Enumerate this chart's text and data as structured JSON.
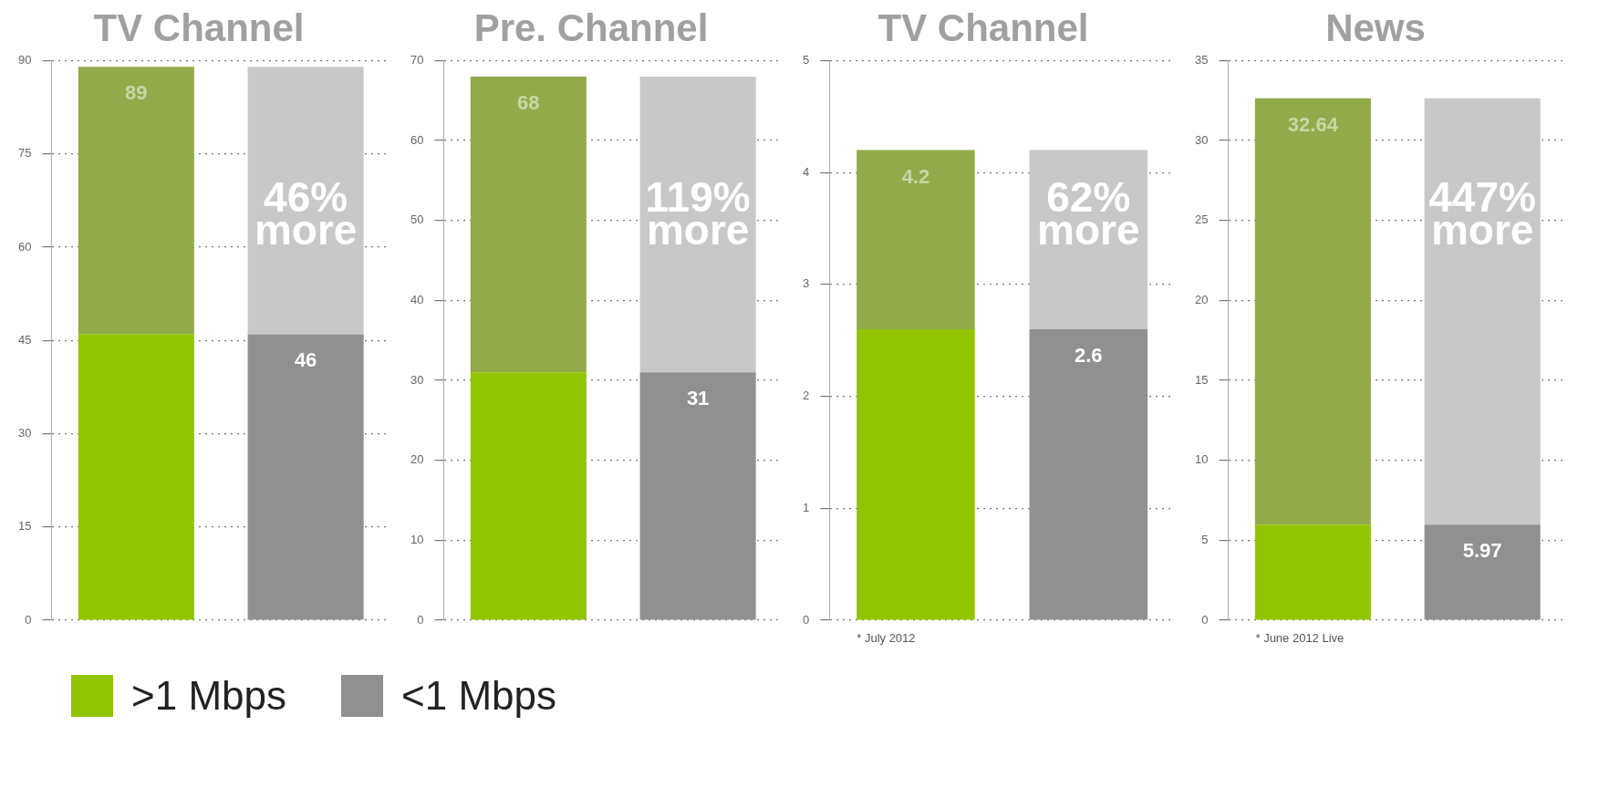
{
  "chart_data": [
    {
      "type": "bar",
      "title": "TV Channel",
      "categories": [
        null,
        null
      ],
      "stacked": true,
      "ylim": [
        0,
        90
      ],
      "yticks": [
        0,
        15,
        30,
        45,
        60,
        75,
        90
      ],
      "grid": "y",
      "legend": "bottom",
      "totals": [
        "89",
        null
      ],
      "annotations": [
        "46% more"
      ],
      "series": [
        {
          "name": ">1 Mbps",
          "color": "#92c400",
          "values": [
            46,
            null
          ]
        },
        {
          "color": "#92aa4a",
          "values": [
            43,
            null
          ]
        },
        {
          "name": "<1 Mbps",
          "color": "#909090",
          "values": [
            null,
            46
          ],
          "value_labels": [
            null,
            "46"
          ]
        },
        {
          "color": "#c8c8c8",
          "values": [
            null,
            43
          ]
        }
      ]
    },
    {
      "type": "bar",
      "title": "Pre. Channel",
      "categories": [
        null,
        null
      ],
      "stacked": true,
      "ylim": [
        0,
        70
      ],
      "yticks": [
        0,
        10,
        20,
        30,
        40,
        50,
        60,
        70
      ],
      "grid": "y",
      "totals": [
        "68",
        null
      ],
      "annotations": [
        "119% more"
      ],
      "series": [
        {
          "color": "#92c400",
          "values": [
            31,
            null
          ]
        },
        {
          "color": "#92aa4a",
          "values": [
            37,
            null
          ]
        },
        {
          "color": "#909090",
          "values": [
            null,
            31
          ],
          "value_labels": [
            null,
            "31"
          ]
        },
        {
          "color": "#c8c8c8",
          "values": [
            null,
            37
          ]
        }
      ]
    },
    {
      "type": "bar",
      "title": "TV Channel",
      "categories": [
        null,
        null
      ],
      "stacked": true,
      "ylim": [
        0,
        5
      ],
      "yticks": [
        0,
        1,
        2,
        3,
        4,
        5
      ],
      "grid": "y",
      "totals": [
        "4.2",
        null
      ],
      "annotations": [
        "62% more",
        "* July 2012"
      ],
      "series": [
        {
          "color": "#92c400",
          "values": [
            2.6,
            null
          ]
        },
        {
          "color": "#92aa4a",
          "values": [
            1.6,
            null
          ]
        },
        {
          "color": "#909090",
          "values": [
            null,
            2.6
          ],
          "value_labels": [
            null,
            "2.6"
          ]
        },
        {
          "color": "#c8c8c8",
          "values": [
            null,
            1.6
          ]
        }
      ]
    },
    {
      "type": "bar",
      "title": "News",
      "categories": [
        null,
        null
      ],
      "stacked": true,
      "ylim": [
        0,
        35
      ],
      "yticks": [
        0,
        5,
        10,
        15,
        20,
        25,
        30,
        35
      ],
      "grid": "y",
      "totals": [
        "32.64",
        null
      ],
      "annotations": [
        "447% more",
        "* June 2012 Live"
      ],
      "series": [
        {
          "color": "#92c400",
          "values": [
            5.97,
            null
          ]
        },
        {
          "color": "#92aa4a",
          "values": [
            26.67,
            null
          ]
        },
        {
          "color": "#909090",
          "values": [
            null,
            5.97
          ],
          "value_labels": [
            null,
            "5.97"
          ]
        },
        {
          "color": "#c8c8c8",
          "values": [
            null,
            26.67
          ]
        }
      ]
    }
  ]
}
